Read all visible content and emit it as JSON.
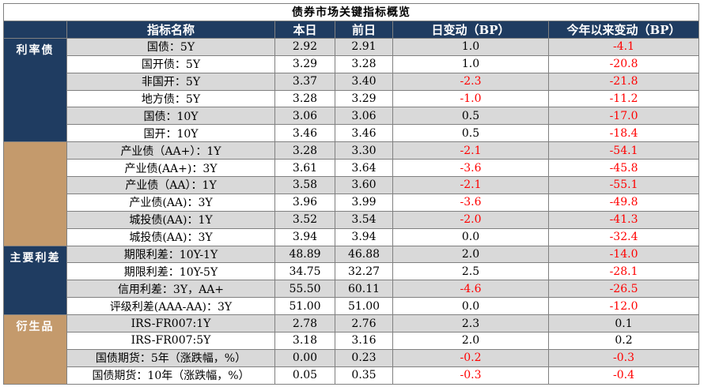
{
  "title": "债券市场关键指标概览",
  "headers": {
    "name": "指标名称",
    "today": "本日",
    "prev": "前日",
    "day_change": "日变动（BP）",
    "ytd_change": "今年以来变动（BP）"
  },
  "categories": {
    "rate_bond": "利率债",
    "main_spread": "主要利差",
    "derivatives": "衍生品"
  },
  "rows": [
    {
      "name": "国债：5Y",
      "today": "2.92",
      "prev": "2.91",
      "day": "1.0",
      "ytd": "-4.1"
    },
    {
      "name": "国开债：5Y",
      "today": "3.29",
      "prev": "3.28",
      "day": "1.0",
      "ytd": "-20.8"
    },
    {
      "name": "非国开：5Y",
      "today": "3.37",
      "prev": "3.40",
      "day": "-2.3",
      "ytd": "-21.8"
    },
    {
      "name": "地方债：5Y",
      "today": "3.28",
      "prev": "3.29",
      "day": "-1.0",
      "ytd": "-11.2"
    },
    {
      "name": "国债：10Y",
      "today": "3.06",
      "prev": "3.06",
      "day": "0.5",
      "ytd": "-17.0"
    },
    {
      "name": "国开：10Y",
      "today": "3.46",
      "prev": "3.46",
      "day": "0.5",
      "ytd": "-18.4"
    },
    {
      "name": "产业债（AA+）：1Y",
      "today": "3.28",
      "prev": "3.30",
      "day": "-2.1",
      "ytd": "-54.1"
    },
    {
      "name": "产业债(AA+)：3Y",
      "today": "3.61",
      "prev": "3.64",
      "day": "-3.6",
      "ytd": "-45.8"
    },
    {
      "name": "产业债（AA）：1Y",
      "today": "3.58",
      "prev": "3.60",
      "day": "-2.1",
      "ytd": "-55.1"
    },
    {
      "name": "产业债(AA)：3Y",
      "today": "3.96",
      "prev": "3.99",
      "day": "-3.6",
      "ytd": "-49.8"
    },
    {
      "name": "城投债(AA)：1Y",
      "today": "3.52",
      "prev": "3.54",
      "day": "-2.0",
      "ytd": "-41.3"
    },
    {
      "name": "城投债(AA)：3Y",
      "today": "3.94",
      "prev": "3.94",
      "day": "0.0",
      "ytd": "-32.4"
    },
    {
      "name": "期限利差：10Y-1Y",
      "today": "48.89",
      "prev": "46.88",
      "day": "2.0",
      "ytd": "-14.0"
    },
    {
      "name": "期限利差：10Y-5Y",
      "today": "34.75",
      "prev": "32.27",
      "day": "2.5",
      "ytd": "-28.1"
    },
    {
      "name": "信用利差：3Y，AA+",
      "today": "55.50",
      "prev": "60.11",
      "day": "-4.6",
      "ytd": "-26.5"
    },
    {
      "name": "评级利差(AAA-AA)：3Y",
      "today": "51.00",
      "prev": "51.00",
      "day": "0.0",
      "ytd": "-12.0"
    },
    {
      "name": "IRS-FR007:1Y",
      "today": "2.78",
      "prev": "2.76",
      "day": "2.3",
      "ytd": "0.1"
    },
    {
      "name": "IRS-FR007:5Y",
      "today": "3.18",
      "prev": "3.16",
      "day": "2.0",
      "ytd": "0.2"
    },
    {
      "name": "国债期货：5年（涨跌幅，%）",
      "today": "0.00",
      "prev": "0.23",
      "day": "-0.2",
      "ytd": "-0.3"
    },
    {
      "name": "国债期货：10年（涨跌幅，%）",
      "today": "0.05",
      "prev": "0.35",
      "day": "-0.3",
      "ytd": "-0.4"
    }
  ],
  "colors": {
    "header_bg": "#1f3c61",
    "category_tan": "#c49a6c",
    "row_gray": "#d9d9d9",
    "negative": "#ff0000"
  }
}
